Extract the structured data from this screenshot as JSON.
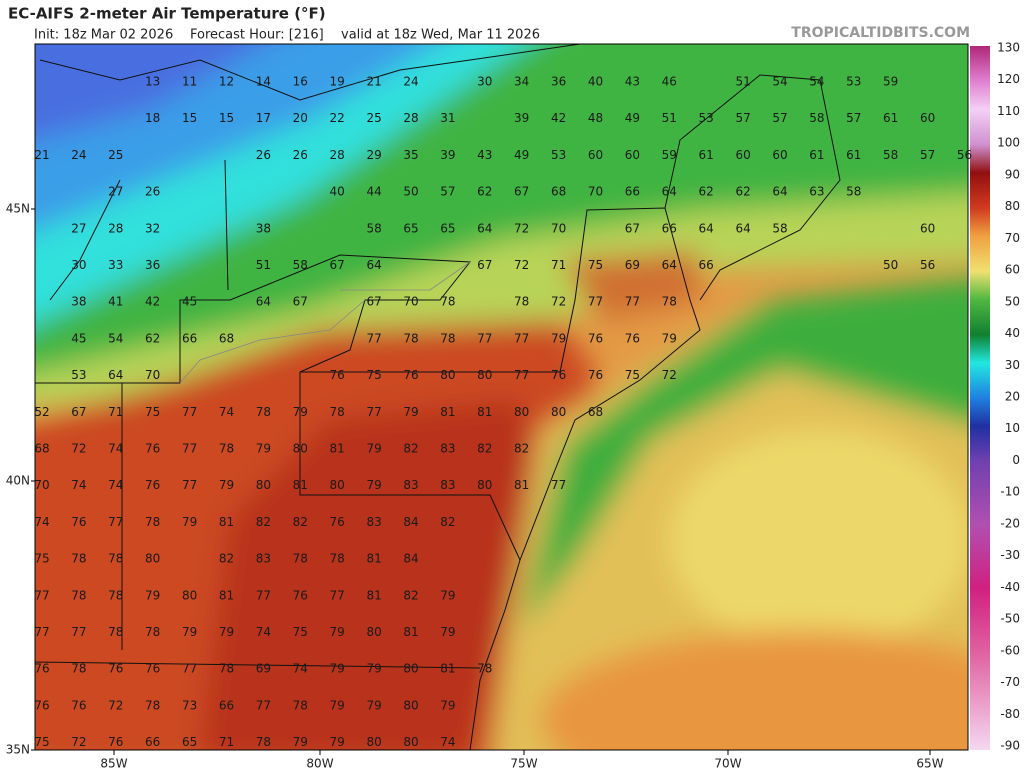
{
  "header": {
    "title": "EC-AIFS 2-meter Air Temperature (°F)",
    "init": "Init: 18z Mar 02 2026",
    "forecast_hour": "Forecast Hour: [216]",
    "valid": "valid at 18z Wed, Mar 11 2026",
    "brand": "TROPICALTIDBITS.COM"
  },
  "map": {
    "lat_labels": [
      "45N",
      "40N",
      "35N"
    ],
    "lon_labels": [
      "85W",
      "80W",
      "75W",
      "70W",
      "65W"
    ],
    "values": [
      [
        null,
        null,
        null,
        13,
        11,
        12,
        14,
        16,
        19,
        21,
        24,
        null,
        30,
        34,
        36,
        40,
        43,
        46,
        null,
        51,
        54,
        54,
        53,
        59
      ],
      [
        null,
        null,
        null,
        18,
        15,
        15,
        17,
        20,
        22,
        25,
        28,
        31,
        null,
        39,
        42,
        48,
        49,
        51,
        53,
        57,
        57,
        58,
        57,
        61,
        60
      ],
      [
        21,
        24,
        25,
        null,
        null,
        null,
        26,
        26,
        28,
        29,
        35,
        39,
        43,
        49,
        53,
        60,
        60,
        59,
        61,
        60,
        60,
        61,
        61,
        58,
        57,
        56
      ],
      [
        null,
        null,
        27,
        26,
        null,
        null,
        null,
        null,
        40,
        44,
        50,
        57,
        62,
        67,
        68,
        70,
        66,
        64,
        62,
        62,
        64,
        63,
        58
      ],
      [
        null,
        27,
        28,
        32,
        null,
        null,
        38,
        null,
        null,
        58,
        65,
        65,
        64,
        72,
        70,
        null,
        67,
        66,
        64,
        64,
        58,
        null,
        null,
        null,
        60
      ],
      [
        null,
        30,
        33,
        36,
        null,
        null,
        51,
        58,
        67,
        64,
        null,
        null,
        67,
        72,
        71,
        75,
        69,
        64,
        66,
        null,
        null,
        null,
        null,
        50,
        56
      ],
      [
        null,
        38,
        41,
        42,
        45,
        null,
        64,
        67,
        null,
        67,
        70,
        78,
        null,
        78,
        72,
        77,
        77,
        78
      ],
      [
        null,
        45,
        54,
        62,
        66,
        68,
        null,
        null,
        null,
        77,
        78,
        78,
        77,
        77,
        79,
        76,
        76,
        79
      ],
      [
        null,
        53,
        64,
        70,
        null,
        null,
        null,
        null,
        76,
        75,
        76,
        80,
        80,
        77,
        76,
        76,
        75,
        72
      ],
      [
        52,
        67,
        71,
        75,
        77,
        74,
        78,
        79,
        78,
        77,
        79,
        81,
        81,
        80,
        80,
        68
      ],
      [
        68,
        72,
        74,
        76,
        77,
        78,
        79,
        80,
        81,
        79,
        82,
        83,
        82,
        82
      ],
      [
        70,
        74,
        74,
        76,
        77,
        79,
        80,
        81,
        80,
        79,
        83,
        83,
        80,
        81,
        77
      ],
      [
        74,
        76,
        77,
        78,
        79,
        81,
        82,
        82,
        76,
        83,
        84,
        82
      ],
      [
        75,
        78,
        78,
        80,
        null,
        82,
        83,
        78,
        78,
        81,
        84
      ],
      [
        77,
        78,
        78,
        79,
        80,
        81,
        77,
        76,
        77,
        81,
        82,
        79
      ],
      [
        77,
        77,
        78,
        78,
        79,
        79,
        74,
        75,
        79,
        80,
        81,
        79
      ],
      [
        76,
        78,
        76,
        76,
        77,
        78,
        69,
        74,
        79,
        79,
        80,
        81,
        78
      ],
      [
        76,
        76,
        72,
        78,
        73,
        66,
        77,
        78,
        79,
        79,
        80,
        79
      ],
      [
        75,
        72,
        76,
        66,
        65,
        71,
        78,
        79,
        79,
        80,
        80,
        74
      ]
    ]
  },
  "colorbar": {
    "ticks": [
      130,
      120,
      110,
      100,
      90,
      80,
      70,
      60,
      50,
      40,
      30,
      20,
      10,
      0,
      -10,
      -20,
      -30,
      -40,
      -50,
      -60,
      -70,
      -80,
      -90
    ]
  }
}
